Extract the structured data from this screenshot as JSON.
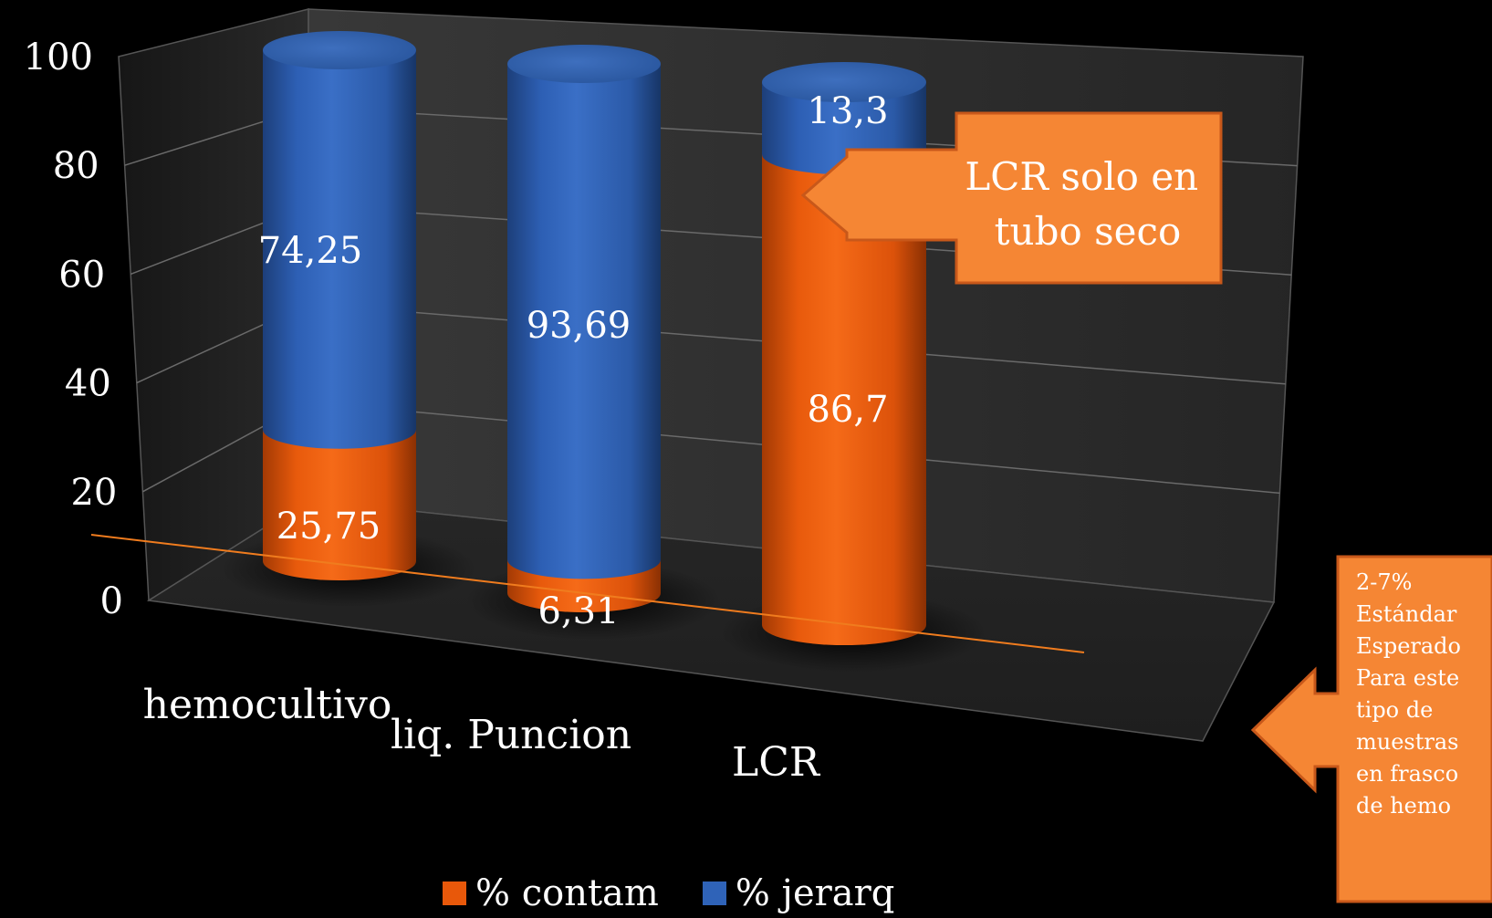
{
  "chart_data": {
    "type": "bar",
    "stacked": true,
    "three_d": true,
    "categories": [
      "hemocultivo",
      "liq. Puncion",
      "LCR"
    ],
    "series": [
      {
        "name": "% contam",
        "values": [
          25.75,
          6.31,
          86.7
        ],
        "labels": [
          "25,75",
          "6,31",
          "86,7"
        ],
        "color": "#e8580a"
      },
      {
        "name": "% jerarq",
        "values": [
          74.25,
          93.69,
          13.3
        ],
        "labels": [
          "74,25",
          "93,69",
          "13,3"
        ],
        "color": "#2f63b8"
      }
    ],
    "y_ticks": [
      "0",
      "20",
      "40",
      "60",
      "80",
      "100"
    ],
    "ylim": [
      0,
      100
    ],
    "grid": true,
    "legend_position": "bottom",
    "reference_line": {
      "value": 2,
      "color": "#f07c1e"
    },
    "callouts": [
      {
        "text": "LCR solo en tubo seco",
        "lines": [
          "LCR solo en",
          "tubo seco"
        ],
        "color": "#f58634"
      },
      {
        "text": "2-7% Estándar Esperado Para este tipo de muestras en frasco de hemo",
        "lines": [
          "2-7%",
          "Estándar",
          "Esperado",
          "Para este",
          "tipo de",
          "muestras",
          "en frasco",
          "de hemo"
        ],
        "color": "#f58634"
      }
    ]
  }
}
